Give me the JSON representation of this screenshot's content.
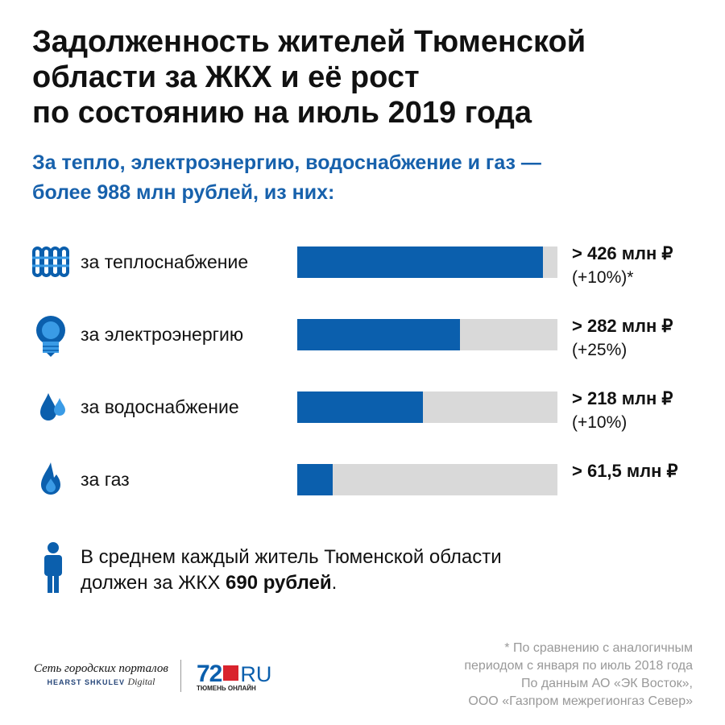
{
  "title": [
    "Задолженность жителей Тюменской",
    "области за ЖКХ и её рост",
    "по состоянию на июль 2019 года"
  ],
  "subtitle": [
    "За тепло, электроэнергию, водоснабжение и газ —",
    "более 988 млн рублей, из них:"
  ],
  "colors": {
    "accent": "#0b5fad",
    "subtitle": "#1761ac",
    "track": "#d9d9d9",
    "icon_light": "#3a9be6"
  },
  "chart_data": {
    "type": "bar",
    "orientation": "horizontal",
    "unit": "млн ₽",
    "xlim": [
      0,
      451
    ],
    "categories": [
      "за теплоснабжение",
      "за электроэнергию",
      "за водоснабжение",
      "за газ"
    ],
    "values": [
      426,
      282,
      218,
      61.5
    ],
    "value_labels": [
      "> 426 млн ₽",
      "> 282 млн ₽",
      "> 218 млн ₽",
      "> 61,5 млн ₽"
    ],
    "change_labels": [
      "(+10%)*",
      "(+25%)",
      "(+10%)",
      ""
    ],
    "icons": [
      "radiator-icon",
      "lightbulb-icon",
      "water-drops-icon",
      "gas-flame-icon"
    ]
  },
  "note": {
    "text": "В среднем каждый житель Тюменской области",
    "text2": "должен за ЖКХ ",
    "bold": "690 рублей",
    "end": "."
  },
  "footnote": [
    "* По сравнению с аналогичным",
    "периодом с января по июль 2018 года",
    "По данным АО «ЭК Восток»,",
    "ООО «Газпром межрегионгаз Север»"
  ],
  "logos": {
    "network": "Сеть городских порталов",
    "hearst": "HEARST SHKULEV",
    "digital": "Digital",
    "site_num": "72",
    "site_ru": "RU",
    "site_sub": "ТЮМЕНЬ ОНЛАЙН"
  }
}
